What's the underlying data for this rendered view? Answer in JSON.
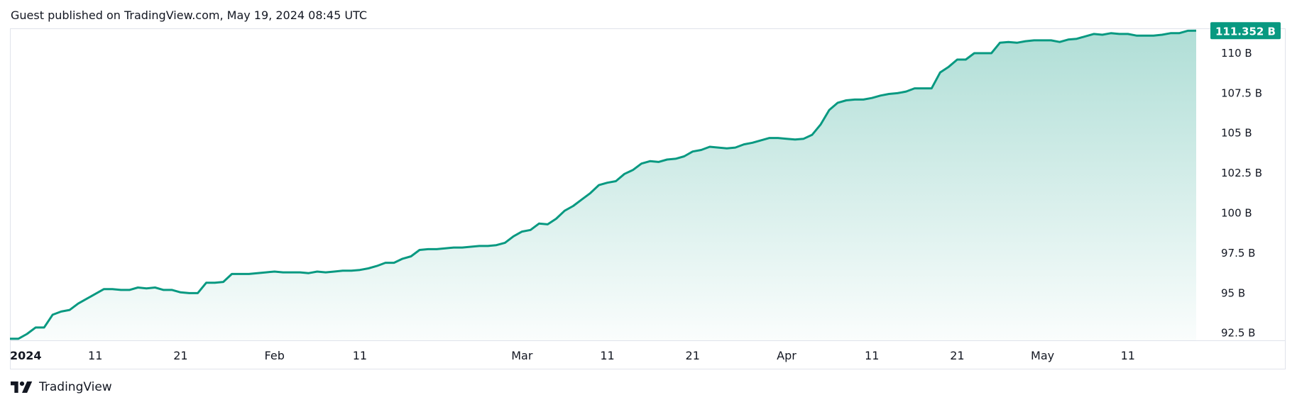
{
  "header": {
    "text": "Guest published on TradingView.com, May 19, 2024 08:45 UTC"
  },
  "footer": {
    "brand": "TradingView"
  },
  "colors": {
    "line": "#089981",
    "fill_top": "#089981",
    "badge_bg": "#089981",
    "badge_text": "#ffffff",
    "border": "#e0e3eb",
    "axis_text": "#131722"
  },
  "chart_data": {
    "type": "area",
    "title": "",
    "xlabel": "",
    "ylabel": "",
    "y_unit_suffix": " B",
    "ylim": [
      92.0,
      111.5
    ],
    "y_ticks": [
      92.5,
      95,
      97.5,
      100,
      102.5,
      105,
      107.5,
      110
    ],
    "y_tick_labels": [
      "92.5 B",
      "95 B",
      "97.5 B",
      "100 B",
      "102.5 B",
      "105 B",
      "107.5 B",
      "110 B"
    ],
    "x_ticks": [
      {
        "date": "2024-01-01",
        "label": "2024",
        "bold": true
      },
      {
        "date": "2024-01-11",
        "label": "11"
      },
      {
        "date": "2024-01-21",
        "label": "21"
      },
      {
        "date": "2024-02-01",
        "label": "Feb"
      },
      {
        "date": "2024-02-11",
        "label": "11"
      },
      {
        "date": "2024-03-01",
        "label": "Mar"
      },
      {
        "date": "2024-03-11",
        "label": "11"
      },
      {
        "date": "2024-03-21",
        "label": "21"
      },
      {
        "date": "2024-04-01",
        "label": "Apr"
      },
      {
        "date": "2024-04-11",
        "label": "11"
      },
      {
        "date": "2024-04-21",
        "label": "21"
      },
      {
        "date": "2024-05-01",
        "label": "May"
      },
      {
        "date": "2024-05-11",
        "label": "11"
      }
    ],
    "last_value_label": "111.352 B",
    "series": [
      {
        "points": [
          [
            "2024-01-01",
            92.1
          ],
          [
            "2024-01-02",
            92.1
          ],
          [
            "2024-01-03",
            92.4
          ],
          [
            "2024-01-04",
            92.8
          ],
          [
            "2024-01-05",
            92.8
          ],
          [
            "2024-01-06",
            93.6
          ],
          [
            "2024-01-07",
            93.8
          ],
          [
            "2024-01-08",
            93.9
          ],
          [
            "2024-01-09",
            94.3
          ],
          [
            "2024-01-10",
            94.6
          ],
          [
            "2024-01-11",
            94.9
          ],
          [
            "2024-01-12",
            95.2
          ],
          [
            "2024-01-13",
            95.2
          ],
          [
            "2024-01-14",
            95.15
          ],
          [
            "2024-01-15",
            95.15
          ],
          [
            "2024-01-16",
            95.3
          ],
          [
            "2024-01-17",
            95.25
          ],
          [
            "2024-01-18",
            95.3
          ],
          [
            "2024-01-19",
            95.15
          ],
          [
            "2024-01-20",
            95.15
          ],
          [
            "2024-01-21",
            95.0
          ],
          [
            "2024-01-22",
            94.95
          ],
          [
            "2024-01-23",
            94.95
          ],
          [
            "2024-01-24",
            95.6
          ],
          [
            "2024-01-25",
            95.6
          ],
          [
            "2024-01-26",
            95.65
          ],
          [
            "2024-01-27",
            96.15
          ],
          [
            "2024-01-28",
            96.15
          ],
          [
            "2024-01-29",
            96.15
          ],
          [
            "2024-01-30",
            96.2
          ],
          [
            "2024-01-31",
            96.25
          ],
          [
            "2024-02-01",
            96.3
          ],
          [
            "2024-02-02",
            96.25
          ],
          [
            "2024-02-03",
            96.25
          ],
          [
            "2024-02-04",
            96.25
          ],
          [
            "2024-02-05",
            96.2
          ],
          [
            "2024-02-06",
            96.3
          ],
          [
            "2024-02-07",
            96.25
          ],
          [
            "2024-02-08",
            96.3
          ],
          [
            "2024-02-09",
            96.35
          ],
          [
            "2024-02-10",
            96.35
          ],
          [
            "2024-02-11",
            96.4
          ],
          [
            "2024-02-12",
            96.5
          ],
          [
            "2024-02-13",
            96.65
          ],
          [
            "2024-02-14",
            96.85
          ],
          [
            "2024-02-15",
            96.85
          ],
          [
            "2024-02-16",
            97.1
          ],
          [
            "2024-02-17",
            97.25
          ],
          [
            "2024-02-18",
            97.65
          ],
          [
            "2024-02-19",
            97.7
          ],
          [
            "2024-02-20",
            97.7
          ],
          [
            "2024-02-21",
            97.75
          ],
          [
            "2024-02-22",
            97.8
          ],
          [
            "2024-02-23",
            97.8
          ],
          [
            "2024-02-24",
            97.85
          ],
          [
            "2024-02-25",
            97.9
          ],
          [
            "2024-02-26",
            97.9
          ],
          [
            "2024-02-27",
            97.95
          ],
          [
            "2024-02-28",
            98.1
          ],
          [
            "2024-02-29",
            98.5
          ],
          [
            "2024-03-01",
            98.8
          ],
          [
            "2024-03-02",
            98.9
          ],
          [
            "2024-03-03",
            99.3
          ],
          [
            "2024-03-04",
            99.25
          ],
          [
            "2024-03-05",
            99.6
          ],
          [
            "2024-03-06",
            100.1
          ],
          [
            "2024-03-07",
            100.4
          ],
          [
            "2024-03-08",
            100.8
          ],
          [
            "2024-03-09",
            101.2
          ],
          [
            "2024-03-10",
            101.7
          ],
          [
            "2024-03-11",
            101.85
          ],
          [
            "2024-03-12",
            101.95
          ],
          [
            "2024-03-13",
            102.4
          ],
          [
            "2024-03-14",
            102.65
          ],
          [
            "2024-03-15",
            103.05
          ],
          [
            "2024-03-16",
            103.2
          ],
          [
            "2024-03-17",
            103.15
          ],
          [
            "2024-03-18",
            103.3
          ],
          [
            "2024-03-19",
            103.35
          ],
          [
            "2024-03-20",
            103.5
          ],
          [
            "2024-03-21",
            103.8
          ],
          [
            "2024-03-22",
            103.9
          ],
          [
            "2024-03-23",
            104.1
          ],
          [
            "2024-03-24",
            104.05
          ],
          [
            "2024-03-25",
            104.0
          ],
          [
            "2024-03-26",
            104.05
          ],
          [
            "2024-03-27",
            104.25
          ],
          [
            "2024-03-28",
            104.35
          ],
          [
            "2024-03-29",
            104.5
          ],
          [
            "2024-03-30",
            104.65
          ],
          [
            "2024-03-31",
            104.65
          ],
          [
            "2024-04-01",
            104.6
          ],
          [
            "2024-04-02",
            104.55
          ],
          [
            "2024-04-03",
            104.6
          ],
          [
            "2024-04-04",
            104.85
          ],
          [
            "2024-04-05",
            105.5
          ],
          [
            "2024-04-06",
            106.4
          ],
          [
            "2024-04-07",
            106.85
          ],
          [
            "2024-04-08",
            107.0
          ],
          [
            "2024-04-09",
            107.05
          ],
          [
            "2024-04-10",
            107.05
          ],
          [
            "2024-04-11",
            107.15
          ],
          [
            "2024-04-12",
            107.3
          ],
          [
            "2024-04-13",
            107.4
          ],
          [
            "2024-04-14",
            107.45
          ],
          [
            "2024-04-15",
            107.55
          ],
          [
            "2024-04-16",
            107.75
          ],
          [
            "2024-04-17",
            107.75
          ],
          [
            "2024-04-18",
            107.75
          ],
          [
            "2024-04-19",
            108.75
          ],
          [
            "2024-04-20",
            109.1
          ],
          [
            "2024-04-21",
            109.55
          ],
          [
            "2024-04-22",
            109.55
          ],
          [
            "2024-04-23",
            109.95
          ],
          [
            "2024-04-24",
            109.95
          ],
          [
            "2024-04-25",
            109.95
          ],
          [
            "2024-04-26",
            110.6
          ],
          [
            "2024-04-27",
            110.65
          ],
          [
            "2024-04-28",
            110.6
          ],
          [
            "2024-04-29",
            110.7
          ],
          [
            "2024-04-30",
            110.75
          ],
          [
            "2024-05-01",
            110.75
          ],
          [
            "2024-05-02",
            110.75
          ],
          [
            "2024-05-03",
            110.65
          ],
          [
            "2024-05-04",
            110.8
          ],
          [
            "2024-05-05",
            110.85
          ],
          [
            "2024-05-06",
            111.0
          ],
          [
            "2024-05-07",
            111.15
          ],
          [
            "2024-05-08",
            111.1
          ],
          [
            "2024-05-09",
            111.2
          ],
          [
            "2024-05-10",
            111.15
          ],
          [
            "2024-05-11",
            111.15
          ],
          [
            "2024-05-12",
            111.05
          ],
          [
            "2024-05-13",
            111.05
          ],
          [
            "2024-05-14",
            111.05
          ],
          [
            "2024-05-15",
            111.1
          ],
          [
            "2024-05-16",
            111.2
          ],
          [
            "2024-05-17",
            111.2
          ],
          [
            "2024-05-18",
            111.35
          ],
          [
            "2024-05-19",
            111.352
          ]
        ]
      }
    ]
  }
}
